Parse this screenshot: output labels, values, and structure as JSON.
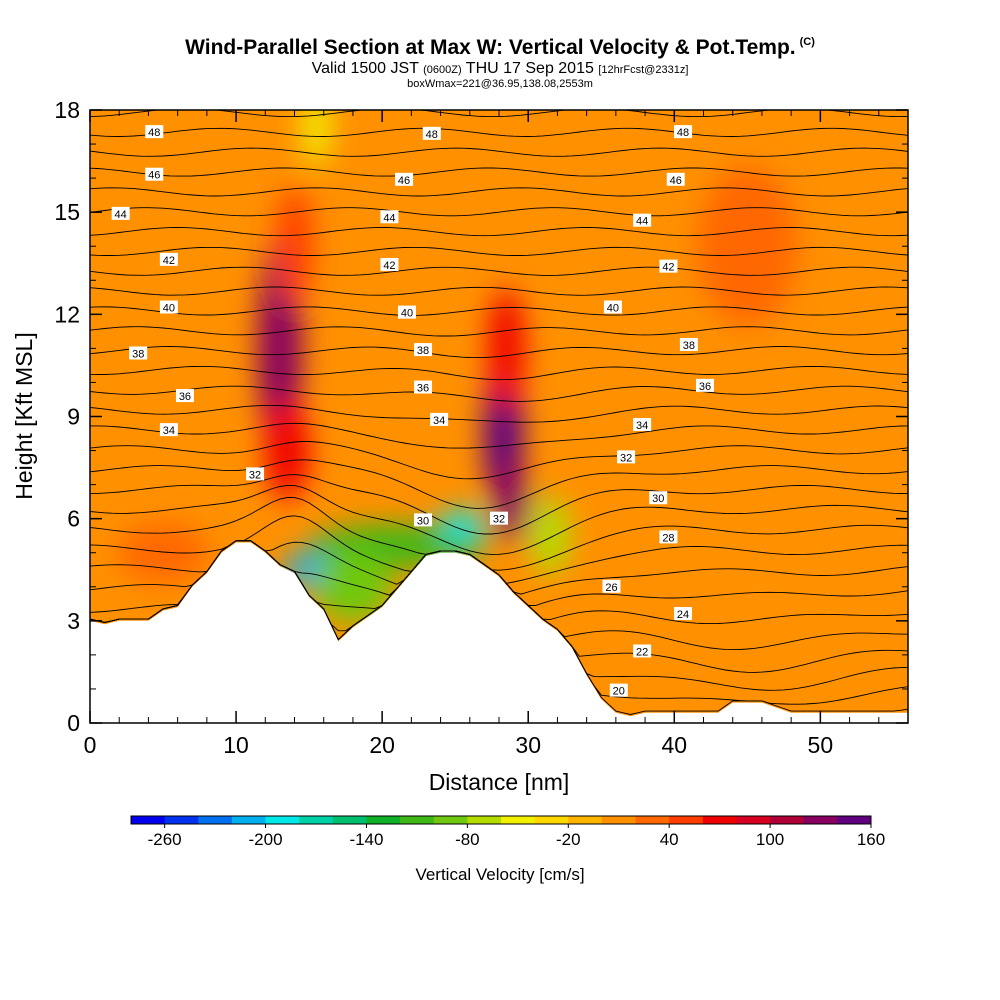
{
  "header": {
    "title": "Wind-Parallel Section at Max W: Vertical Velocity & Pot.Temp.",
    "title_tag": "(C)",
    "valid_prefix": "Valid 1500 JST",
    "valid_z": "(0600Z)",
    "valid_suffix": "THU 17 Sep 2015",
    "forecast_tag": "[12hrFcst@2331z]",
    "subline": "boxWmax=221@36.95,138.08,2553m"
  },
  "chart_data": {
    "type": "heatmap",
    "xlabel": "Distance [nm]",
    "ylabel": "Height [Kft MSL]",
    "xlim": [
      0,
      56
    ],
    "ylim": [
      0,
      18
    ],
    "x_ticks": [
      "0",
      "10",
      "20",
      "30",
      "40",
      "50"
    ],
    "x_tick_values": [
      0,
      10,
      20,
      30,
      40,
      50
    ],
    "y_ticks": [
      "0",
      "3",
      "6",
      "9",
      "12",
      "15",
      "18"
    ],
    "y_tick_values": [
      0,
      3,
      6,
      9,
      12,
      15,
      18
    ],
    "terrain": [
      [
        0,
        3.0
      ],
      [
        1,
        2.9
      ],
      [
        2,
        3.0
      ],
      [
        4,
        3.0
      ],
      [
        5,
        3.3
      ],
      [
        6,
        3.4
      ],
      [
        7,
        4.0
      ],
      [
        8,
        4.4
      ],
      [
        9,
        5.0
      ],
      [
        10,
        5.3
      ],
      [
        11,
        5.3
      ],
      [
        12,
        5.0
      ],
      [
        13,
        4.6
      ],
      [
        14,
        4.4
      ],
      [
        15,
        3.7
      ],
      [
        16,
        3.3
      ],
      [
        17,
        2.4
      ],
      [
        18,
        2.8
      ],
      [
        19,
        3.1
      ],
      [
        20,
        3.4
      ],
      [
        21,
        3.9
      ],
      [
        22,
        4.4
      ],
      [
        23,
        4.9
      ],
      [
        24,
        5.0
      ],
      [
        25,
        5.0
      ],
      [
        26,
        4.9
      ],
      [
        27,
        4.6
      ],
      [
        28,
        4.3
      ],
      [
        29,
        3.8
      ],
      [
        30,
        3.4
      ],
      [
        31,
        3.0
      ],
      [
        32,
        2.7
      ],
      [
        33,
        2.2
      ],
      [
        34,
        1.4
      ],
      [
        35,
        0.7
      ],
      [
        36,
        0.3
      ],
      [
        37,
        0.2
      ],
      [
        38,
        0.3
      ],
      [
        40,
        0.3
      ],
      [
        42,
        0.3
      ],
      [
        43,
        0.3
      ],
      [
        44,
        0.6
      ],
      [
        46,
        0.6
      ],
      [
        48,
        0.3
      ],
      [
        50,
        0.3
      ],
      [
        52,
        0.3
      ],
      [
        56,
        0.3
      ]
    ],
    "w_cells": [
      {
        "x": 13,
        "y": 11.0,
        "w": 120
      },
      {
        "x": 13.5,
        "y": 8.0,
        "w": 70
      },
      {
        "x": 14,
        "y": 14.0,
        "w": 50
      },
      {
        "x": 28.3,
        "y": 8.5,
        "w": 190
      },
      {
        "x": 28.8,
        "y": 6.5,
        "w": 120
      },
      {
        "x": 28.5,
        "y": 11.0,
        "w": 60
      },
      {
        "x": 21,
        "y": 5.2,
        "w": -120
      },
      {
        "x": 25.5,
        "y": 5.8,
        "w": -200
      },
      {
        "x": 15,
        "y": 4.5,
        "w": -220
      },
      {
        "x": 18,
        "y": 4.0,
        "w": -100
      },
      {
        "x": 31.5,
        "y": 5.5,
        "w": -70
      },
      {
        "x": 15.5,
        "y": 17.5,
        "w": -50
      },
      {
        "x": 5,
        "y": 5.0,
        "w": 30
      },
      {
        "x": 45,
        "y": 14.0,
        "w": 30
      }
    ],
    "theta_levels": [
      20,
      22,
      24,
      26,
      28,
      30,
      32,
      34,
      36,
      38,
      40,
      42,
      44,
      46,
      48
    ],
    "theta_labels": [
      {
        "text": "48",
        "x": 4.4,
        "y": 17.35
      },
      {
        "text": "48",
        "x": 23.4,
        "y": 17.3
      },
      {
        "text": "48",
        "x": 40.6,
        "y": 17.35
      },
      {
        "text": "46",
        "x": 4.4,
        "y": 16.1
      },
      {
        "text": "46",
        "x": 21.5,
        "y": 15.95
      },
      {
        "text": "46",
        "x": 40.1,
        "y": 15.95
      },
      {
        "text": "44",
        "x": 2.1,
        "y": 14.95
      },
      {
        "text": "44",
        "x": 20.5,
        "y": 14.85
      },
      {
        "text": "44",
        "x": 37.8,
        "y": 14.75
      },
      {
        "text": "42",
        "x": 5.4,
        "y": 13.6
      },
      {
        "text": "42",
        "x": 20.5,
        "y": 13.45
      },
      {
        "text": "42",
        "x": 39.6,
        "y": 13.4
      },
      {
        "text": "40",
        "x": 5.4,
        "y": 12.2
      },
      {
        "text": "40",
        "x": 21.7,
        "y": 12.05
      },
      {
        "text": "40",
        "x": 35.8,
        "y": 12.2
      },
      {
        "text": "38",
        "x": 3.3,
        "y": 10.85
      },
      {
        "text": "38",
        "x": 22.8,
        "y": 10.95
      },
      {
        "text": "38",
        "x": 41.0,
        "y": 11.1
      },
      {
        "text": "36",
        "x": 6.5,
        "y": 9.6
      },
      {
        "text": "36",
        "x": 22.8,
        "y": 9.85
      },
      {
        "text": "36",
        "x": 42.1,
        "y": 9.9
      },
      {
        "text": "34",
        "x": 5.4,
        "y": 8.6
      },
      {
        "text": "34",
        "x": 23.9,
        "y": 8.9
      },
      {
        "text": "34",
        "x": 37.8,
        "y": 8.75
      },
      {
        "text": "32",
        "x": 11.3,
        "y": 7.3
      },
      {
        "text": "32",
        "x": 28.0,
        "y": 6.0
      },
      {
        "text": "32",
        "x": 36.7,
        "y": 7.8
      },
      {
        "text": "30",
        "x": 22.8,
        "y": 5.95
      },
      {
        "text": "30",
        "x": 38.9,
        "y": 6.6
      },
      {
        "text": "28",
        "x": 39.6,
        "y": 5.45
      },
      {
        "text": "26",
        "x": 35.7,
        "y": 4.0
      },
      {
        "text": "24",
        "x": 40.6,
        "y": 3.2
      },
      {
        "text": "22",
        "x": 37.8,
        "y": 2.1
      },
      {
        "text": "20",
        "x": 36.2,
        "y": 0.95
      }
    ]
  },
  "colorbar": {
    "label": "Vertical Velocity [cm/s]",
    "colors": [
      "#0000f0",
      "#0030f0",
      "#0070f0",
      "#00b0f0",
      "#00e8e8",
      "#00d2a8",
      "#00c070",
      "#10b028",
      "#40b818",
      "#70c810",
      "#b4dc00",
      "#f0f000",
      "#ffd800",
      "#ffb400",
      "#ff9000",
      "#ff6800",
      "#ff3c00",
      "#f00000",
      "#d80020",
      "#b00038",
      "#880060",
      "#600080"
    ],
    "tick_labels": [
      "-260",
      "-200",
      "-140",
      "-80",
      "-20",
      "40",
      "100",
      "160"
    ],
    "tick_values": [
      -260,
      -200,
      -140,
      -80,
      -20,
      40,
      100,
      160
    ],
    "range": [
      -280,
      160
    ]
  }
}
